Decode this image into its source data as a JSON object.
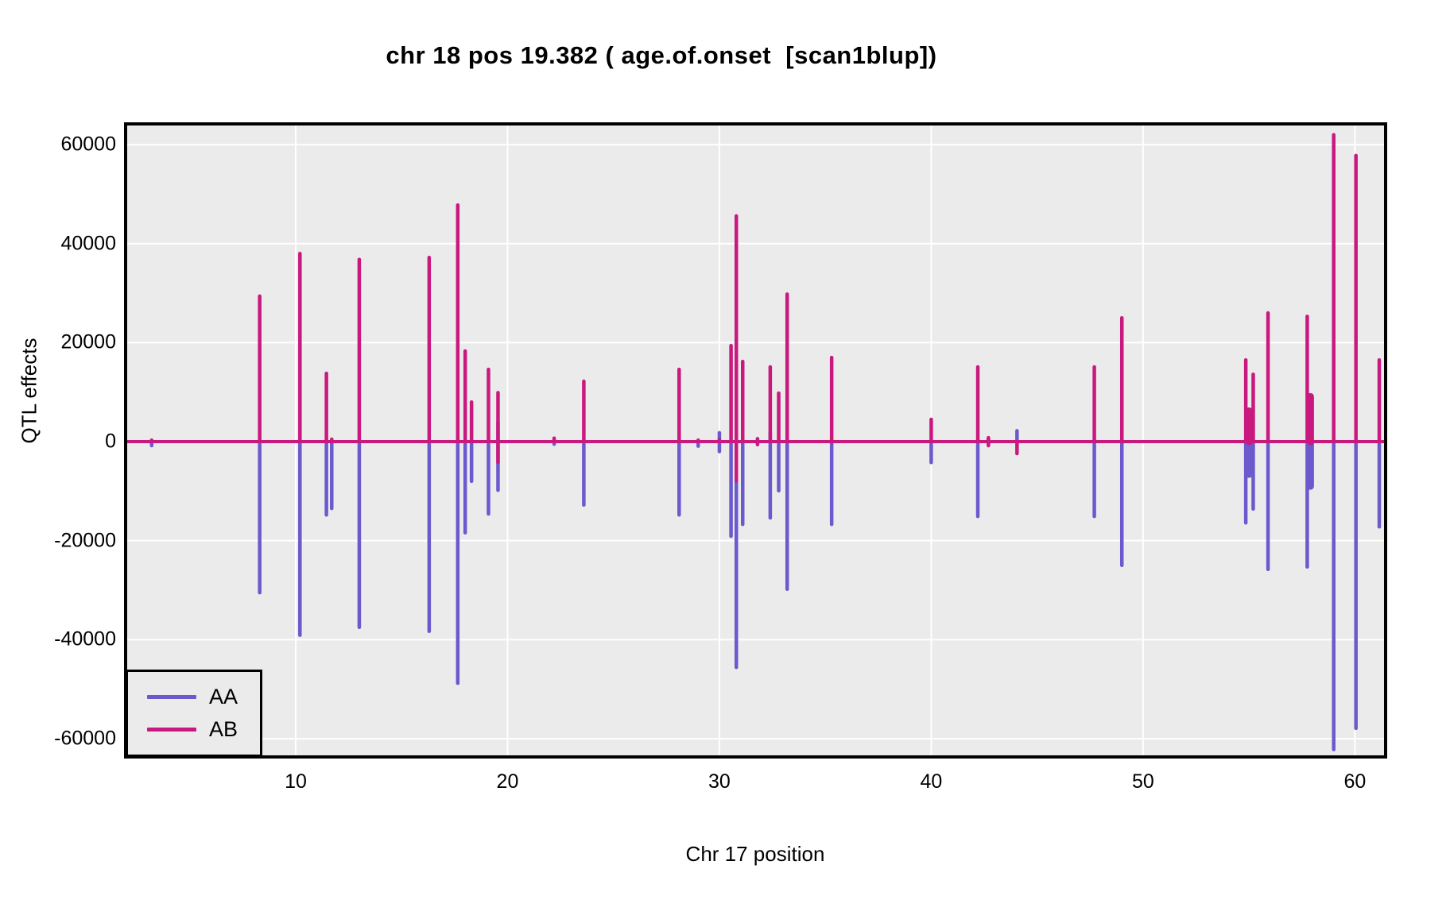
{
  "title": "chr 18 pos 19.382 ( age.of.onset  [scan1blup])",
  "y_axis": {
    "label": "QTL effects",
    "ticks": [
      60000,
      40000,
      20000,
      0,
      -20000,
      -40000,
      -60000
    ],
    "tick_labels": [
      "60000",
      "40000",
      "20000",
      "0",
      "-20000",
      "-40000",
      "-60000"
    ]
  },
  "x_axis": {
    "label": "Chr 17 position",
    "ticks": [
      10,
      20,
      30,
      40,
      50,
      60
    ],
    "tick_labels": [
      "10",
      "20",
      "30",
      "40",
      "50",
      "60"
    ]
  },
  "legend": {
    "items": [
      {
        "label": "AA",
        "color": "#6a5acd"
      },
      {
        "label": "AB",
        "color": "#c9197f"
      }
    ]
  },
  "panel": {
    "background": "#ebebeb",
    "grid_color": "#ffffff",
    "border_color": "#000000"
  },
  "chart_data": {
    "type": "line",
    "subtype": "qtl-effect-spikes",
    "title": "chr 18 pos 19.382 ( age.of.onset  [scan1blup])",
    "xlabel": "Chr 17 position",
    "ylabel": "QTL effects",
    "xlim": [
      1.97,
      61.45
    ],
    "ylim": [
      -63700,
      64200
    ],
    "grid": true,
    "legend_position": "bottom-left",
    "series": [
      {
        "name": "AA",
        "color": "#6a5acd"
      },
      {
        "name": "AB",
        "color": "#c9197f"
      }
    ],
    "baseline": {
      "value": 0,
      "color": "#c9197f"
    },
    "spikes": [
      {
        "x": 3.2,
        "aa": [
          -800,
          0
        ],
        "ab": [
          0,
          300
        ]
      },
      {
        "x": 8.3,
        "aa": [
          -30500,
          0
        ],
        "ab": [
          0,
          29400
        ]
      },
      {
        "x": 10.2,
        "aa": [
          -39100,
          0
        ],
        "ab": [
          0,
          38000
        ]
      },
      {
        "x": 11.45,
        "aa": [
          -14800,
          0
        ],
        "ab": [
          0,
          13800
        ]
      },
      {
        "x": 11.7,
        "aa": [
          -13500,
          0
        ],
        "ab": [
          0,
          500
        ]
      },
      {
        "x": 13.0,
        "aa": [
          -37500,
          0
        ],
        "ab": [
          0,
          36800
        ]
      },
      {
        "x": 16.3,
        "aa": [
          -38300,
          0
        ],
        "ab": [
          0,
          37200
        ]
      },
      {
        "x": 17.65,
        "aa": [
          -48800,
          0
        ],
        "ab": [
          0,
          47800
        ]
      },
      {
        "x": 18.0,
        "aa": [
          -18400,
          0
        ],
        "ab": [
          0,
          18300
        ]
      },
      {
        "x": 18.3,
        "aa": [
          -8000,
          0
        ],
        "ab": [
          0,
          8000
        ]
      },
      {
        "x": 19.1,
        "aa": [
          -14600,
          0
        ],
        "ab": [
          0,
          14600
        ]
      },
      {
        "x": 19.55,
        "aa": [
          -9800,
          3900
        ],
        "ab": [
          -4200,
          9900
        ]
      },
      {
        "x": 22.2,
        "aa": [
          -500,
          0
        ],
        "ab": [
          0,
          700
        ]
      },
      {
        "x": 23.6,
        "aa": [
          -12800,
          0
        ],
        "ab": [
          0,
          12200
        ]
      },
      {
        "x": 28.1,
        "aa": [
          -14800,
          0
        ],
        "ab": [
          0,
          14600
        ]
      },
      {
        "x": 29.0,
        "aa": [
          -900,
          0
        ],
        "ab": [
          0,
          300
        ]
      },
      {
        "x": 30.0,
        "aa": [
          -2000,
          1800
        ],
        "ab": [
          0,
          400
        ]
      },
      {
        "x": 30.55,
        "aa": [
          -19100,
          0
        ],
        "ab": [
          0,
          19400
        ]
      },
      {
        "x": 30.8,
        "aa": [
          -45600,
          0
        ],
        "ab": [
          -7900,
          45600
        ]
      },
      {
        "x": 31.1,
        "aa": [
          -16700,
          0
        ],
        "ab": [
          0,
          16200
        ]
      },
      {
        "x": 31.8,
        "aa": [
          0,
          0
        ],
        "ab": [
          -600,
          600
        ]
      },
      {
        "x": 32.4,
        "aa": [
          -15400,
          1800
        ],
        "ab": [
          0,
          15100
        ]
      },
      {
        "x": 32.8,
        "aa": [
          -9900,
          0
        ],
        "ab": [
          0,
          9800
        ]
      },
      {
        "x": 33.2,
        "aa": [
          -29800,
          0
        ],
        "ab": [
          0,
          29800
        ]
      },
      {
        "x": 35.3,
        "aa": [
          -16700,
          0
        ],
        "ab": [
          0,
          17000
        ]
      },
      {
        "x": 40.0,
        "aa": [
          -4200,
          0
        ],
        "ab": [
          0,
          4500
        ]
      },
      {
        "x": 42.2,
        "aa": [
          -15100,
          0
        ],
        "ab": [
          0,
          15100
        ]
      },
      {
        "x": 42.7,
        "aa": [
          -600,
          600
        ],
        "ab": [
          -800,
          800
        ]
      },
      {
        "x": 44.05,
        "aa": [
          0,
          2200
        ],
        "ab": [
          -2400,
          0
        ]
      },
      {
        "x": 47.7,
        "aa": [
          -15100,
          0
        ],
        "ab": [
          0,
          15100
        ]
      },
      {
        "x": 49.0,
        "aa": [
          -25000,
          0
        ],
        "ab": [
          0,
          25000
        ]
      },
      {
        "x": 54.85,
        "aa": [
          -16400,
          0
        ],
        "ab": [
          0,
          16500
        ]
      },
      {
        "x": 55.0,
        "aa": [
          -6600,
          0
        ],
        "ab": [
          0,
          6200
        ],
        "w": 9
      },
      {
        "x": 55.2,
        "aa": [
          -13600,
          0
        ],
        "ab": [
          0,
          13600
        ]
      },
      {
        "x": 55.9,
        "aa": [
          -25800,
          0
        ],
        "ab": [
          0,
          26000
        ]
      },
      {
        "x": 57.75,
        "aa": [
          -25300,
          0
        ],
        "ab": [
          0,
          25300
        ]
      },
      {
        "x": 57.9,
        "aa": [
          -9000,
          0
        ],
        "ab": [
          0,
          9100
        ],
        "w": 9
      },
      {
        "x": 59.0,
        "aa": [
          -62200,
          0
        ],
        "ab": [
          0,
          62000
        ]
      },
      {
        "x": 60.05,
        "aa": [
          -57900,
          0
        ],
        "ab": [
          0,
          57800
        ]
      },
      {
        "x": 61.15,
        "aa": [
          -17200,
          0
        ],
        "ab": [
          0,
          16500
        ]
      }
    ]
  }
}
